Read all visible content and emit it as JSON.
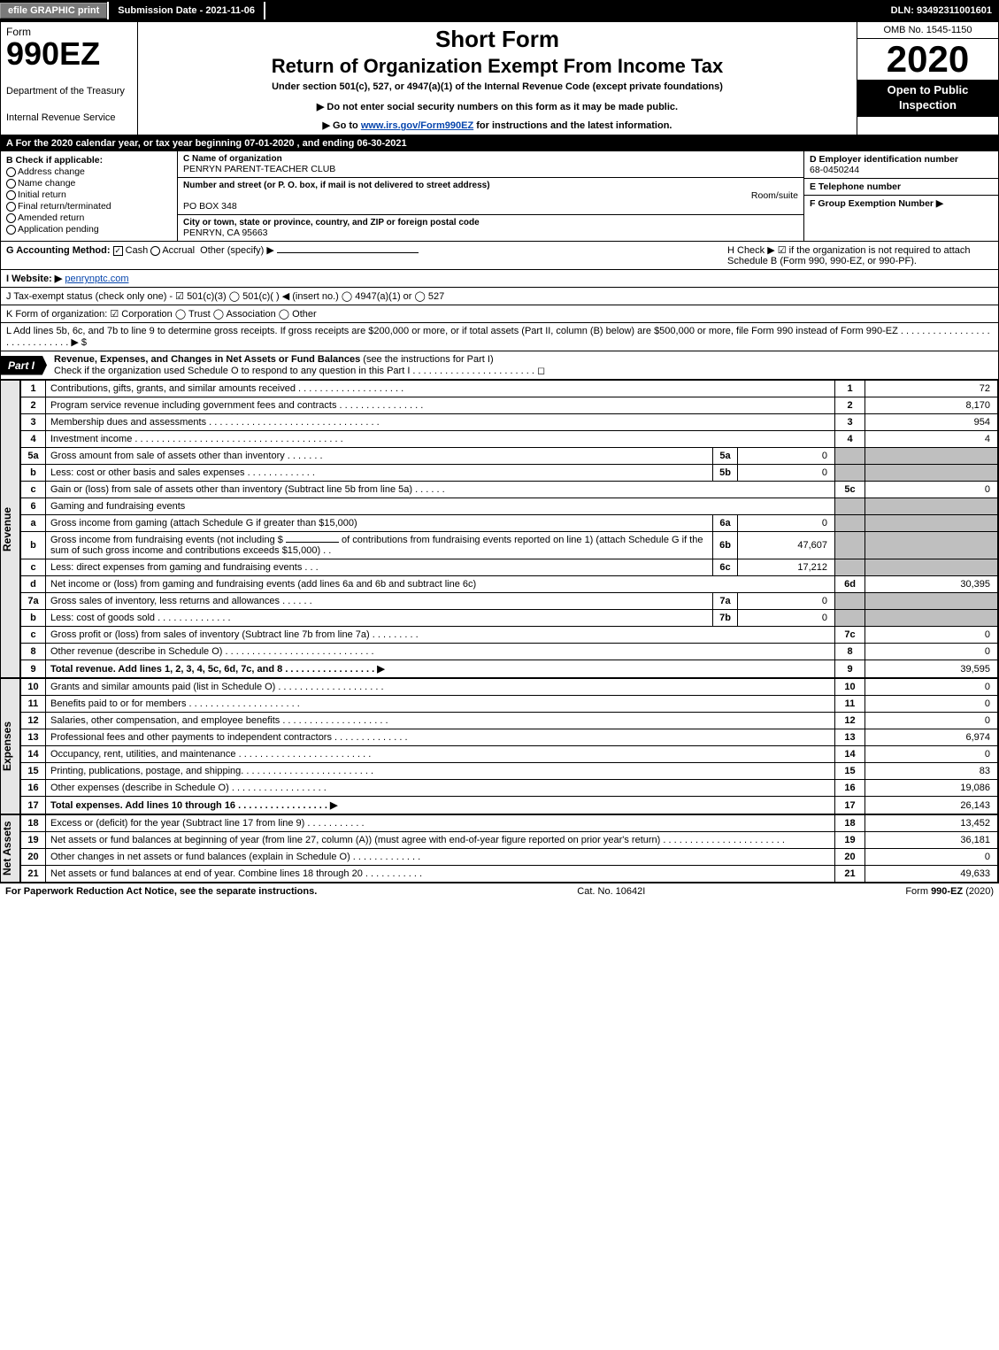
{
  "top": {
    "efile": "efile GRAPHIC print",
    "submission": "Submission Date - 2021-11-06",
    "dln": "DLN: 93492311001601"
  },
  "header": {
    "form_word": "Form",
    "form_no": "990EZ",
    "dept1": "Department of the Treasury",
    "dept2": "Internal Revenue Service",
    "short": "Short Form",
    "title": "Return of Organization Exempt From Income Tax",
    "under": "Under section 501(c), 527, or 4947(a)(1) of the Internal Revenue Code (except private foundations)",
    "note": "▶ Do not enter social security numbers on this form as it may be made public.",
    "go_pre": "▶ Go to ",
    "go_link": "www.irs.gov/Form990EZ",
    "go_post": " for instructions and the latest information.",
    "omb": "OMB No. 1545-1150",
    "year": "2020",
    "open": "Open to Public Inspection"
  },
  "rowA": "A  For the 2020 calendar year, or tax year beginning 07-01-2020 , and ending 06-30-2021",
  "boxB": {
    "title": "B  Check if applicable:",
    "addr": "Address change",
    "name": "Name change",
    "init": "Initial return",
    "final": "Final return/terminated",
    "amend": "Amended return",
    "app": "Application pending"
  },
  "boxC": {
    "c_lbl": "C Name of organization",
    "c_val": "PENRYN PARENT-TEACHER CLUB",
    "addr_lbl": "Number and street (or P. O. box, if mail is not delivered to street address)",
    "room_lbl": "Room/suite",
    "addr_val": "PO BOX 348",
    "city_lbl": "City or town, state or province, country, and ZIP or foreign postal code",
    "city_val": "PENRYN, CA  95663"
  },
  "boxD": {
    "d_lbl": "D Employer identification number",
    "d_val": "68-0450244",
    "e_lbl": "E Telephone number",
    "e_val": "",
    "f_lbl": "F Group Exemption Number  ▶",
    "f_val": ""
  },
  "rowG": {
    "g": "G Accounting Method:",
    "cash": "Cash",
    "accr": "Accrual",
    "other": "Other (specify) ▶",
    "h": "H  Check ▶  ☑  if the organization is not required to attach Schedule B (Form 990, 990-EZ, or 990-PF)."
  },
  "rowI": {
    "lbl": "I Website: ▶",
    "val": "penrynptc.com"
  },
  "rowJ": "J Tax-exempt status (check only one) -  ☑ 501(c)(3)  ◯ 501(c)(  ) ◀ (insert no.)  ◯ 4947(a)(1) or  ◯ 527",
  "rowK": "K Form of organization:   ☑ Corporation   ◯ Trust   ◯ Association   ◯ Other",
  "rowL": "L Add lines 5b, 6c, and 7b to line 9 to determine gross receipts. If gross receipts are $200,000 or more, or if total assets (Part II, column (B) below) are $500,000 or more, file Form 990 instead of Form 990-EZ . . . . . . . . . . . . . . . . . . . . . . . . . . . . .  ▶ $",
  "part1": {
    "tag": "Part I",
    "title": "Revenue, Expenses, and Changes in Net Assets or Fund Balances ",
    "sub": "(see the instructions for Part I)",
    "check": "Check if the organization used Schedule O to respond to any question in this Part I . . . . . . . . . . . . . . . . . . . . . . .  ◻"
  },
  "side_rev": "Revenue",
  "side_exp": "Expenses",
  "side_net": "Net Assets",
  "revenue": [
    {
      "n": "1",
      "d": "Contributions, gifts, grants, and similar amounts received . . . . . . . . . . . . . . . . . . . .",
      "r": "1",
      "v": "72"
    },
    {
      "n": "2",
      "d": "Program service revenue including government fees and contracts . . . . . . . . . . . . . . . .",
      "r": "2",
      "v": "8,170"
    },
    {
      "n": "3",
      "d": "Membership dues and assessments . . . . . . . . . . . . . . . . . . . . . . . . . . . . . . . .",
      "r": "3",
      "v": "954"
    },
    {
      "n": "4",
      "d": "Investment income . . . . . . . . . . . . . . . . . . . . . . . . . . . . . . . . . . . . . . .",
      "r": "4",
      "v": "4"
    }
  ],
  "l5a": {
    "n": "5a",
    "d": "Gross amount from sale of assets other than inventory . . . . . . .",
    "ml": "5a",
    "mv": "0"
  },
  "l5b": {
    "n": "b",
    "d": "Less: cost or other basis and sales expenses . . . . . . . . . . . . .",
    "ml": "5b",
    "mv": "0"
  },
  "l5c": {
    "n": "c",
    "d": "Gain or (loss) from sale of assets other than inventory (Subtract line 5b from line 5a) . . . . . .",
    "r": "5c",
    "v": "0"
  },
  "l6": {
    "n": "6",
    "d": "Gaming and fundraising events"
  },
  "l6a": {
    "n": "a",
    "d": "Gross income from gaming (attach Schedule G if greater than $15,000)",
    "ml": "6a",
    "mv": "0"
  },
  "l6b": {
    "n": "b",
    "d1": "Gross income from fundraising events (not including $",
    "d2": "of contributions from fundraising events reported on line 1) (attach Schedule G if the sum of such gross income and contributions exceeds $15,000)   .  .",
    "ml": "6b",
    "mv": "47,607"
  },
  "l6c": {
    "n": "c",
    "d": "Less: direct expenses from gaming and fundraising events   .  .  .",
    "ml": "6c",
    "mv": "17,212"
  },
  "l6d": {
    "n": "d",
    "d": "Net income or (loss) from gaming and fundraising events (add lines 6a and 6b and subtract line 6c)",
    "r": "6d",
    "v": "30,395"
  },
  "l7a": {
    "n": "7a",
    "d": "Gross sales of inventory, less returns and allowances . . . . . .",
    "ml": "7a",
    "mv": "0"
  },
  "l7b": {
    "n": "b",
    "d": "Less: cost of goods sold       .   .   .   .   .   .   .   .   .   .   .   .   .   .",
    "ml": "7b",
    "mv": "0"
  },
  "l7c": {
    "n": "c",
    "d": "Gross profit or (loss) from sales of inventory (Subtract line 7b from line 7a) . . . . . . . . .",
    "r": "7c",
    "v": "0"
  },
  "l8": {
    "n": "8",
    "d": "Other revenue (describe in Schedule O) . . . . . . . . . . . . . . . . . . . . . . . . . . . .",
    "r": "8",
    "v": "0"
  },
  "l9": {
    "n": "9",
    "d": "Total revenue. Add lines 1, 2, 3, 4, 5c, 6d, 7c, and 8  .  .  .  .  .  .  .  .  .  .  .  .  .  .  .  .  .   ▶",
    "r": "9",
    "v": "39,595"
  },
  "expenses": [
    {
      "n": "10",
      "d": "Grants and similar amounts paid (list in Schedule O) . . . . . . . . . . . . . . . . . . . .",
      "r": "10",
      "v": "0"
    },
    {
      "n": "11",
      "d": "Benefits paid to or for members    .   .   .   .   .   .   .   .   .   .   .   .   .   .   .   .   .   .   .   .   .",
      "r": "11",
      "v": "0"
    },
    {
      "n": "12",
      "d": "Salaries, other compensation, and employee benefits . . . . . . . . . . . . . . . . . . . .",
      "r": "12",
      "v": "0"
    },
    {
      "n": "13",
      "d": "Professional fees and other payments to independent contractors . . . . . . . . . . . . . .",
      "r": "13",
      "v": "6,974"
    },
    {
      "n": "14",
      "d": "Occupancy, rent, utilities, and maintenance . . . . . . . . . . . . . . . . . . . . . . . . .",
      "r": "14",
      "v": "0"
    },
    {
      "n": "15",
      "d": "Printing, publications, postage, and shipping. . . . . . . . . . . . . . . . . . . . . . . . .",
      "r": "15",
      "v": "83"
    },
    {
      "n": "16",
      "d": "Other expenses (describe in Schedule O)    .   .   .   .   .   .   .   .   .   .   .   .   .   .   .   .   .   .",
      "r": "16",
      "v": "19,086"
    },
    {
      "n": "17",
      "d": "Total expenses. Add lines 10 through 16     .   .   .   .   .   .   .   .   .   .   .   .   .   .   .   .   .   ▶",
      "r": "17",
      "v": "26,143"
    }
  ],
  "netassets": [
    {
      "n": "18",
      "d": "Excess or (deficit) for the year (Subtract line 17 from line 9)       .   .   .   .   .   .   .   .   .   .   .",
      "r": "18",
      "v": "13,452"
    },
    {
      "n": "19",
      "d": "Net assets or fund balances at beginning of year (from line 27, column (A)) (must agree with end-of-year figure reported on prior year's return) . . . . . . . . . . . . . . . . . . . . . . .",
      "r": "19",
      "v": "36,181"
    },
    {
      "n": "20",
      "d": "Other changes in net assets or fund balances (explain in Schedule O) . . . . . . . . . . . . .",
      "r": "20",
      "v": "0"
    },
    {
      "n": "21",
      "d": "Net assets or fund balances at end of year. Combine lines 18 through 20 . . . . . . . . . . .",
      "r": "21",
      "v": "49,633"
    }
  ],
  "footer": {
    "left": "For Paperwork Reduction Act Notice, see the separate instructions.",
    "mid": "Cat. No. 10642I",
    "right_pre": "Form ",
    "right_b": "990-EZ",
    "right_post": " (2020)"
  },
  "colors": {
    "black": "#000000",
    "grey": "#bfbfbf",
    "link": "#0645ad",
    "side": "#e6e6e6"
  }
}
